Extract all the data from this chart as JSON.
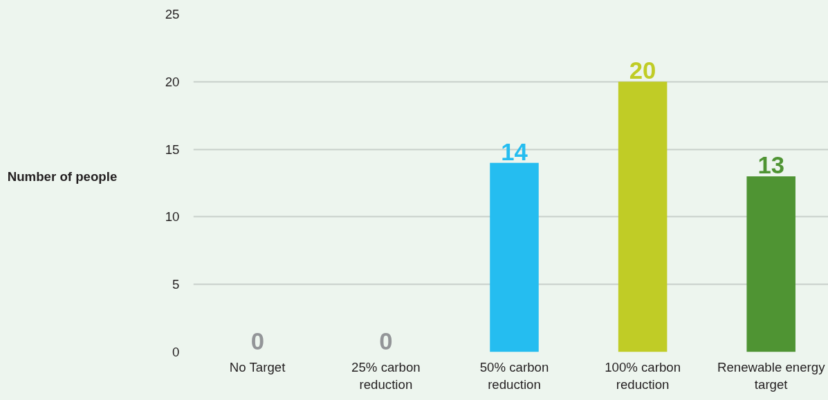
{
  "chart_data": {
    "type": "bar",
    "ylabel": "Number of people",
    "categories": [
      "No Target",
      "25% carbon reduction",
      "50% carbon reduction",
      "100% carbon reduction",
      "Renewable energy target"
    ],
    "values": [
      0,
      0,
      14,
      20,
      13
    ],
    "colors": [
      "#939598",
      "#939598",
      "#25bdf0",
      "#c0cc26",
      "#4f9433"
    ],
    "ylim": [
      0,
      25
    ],
    "yticks": [
      0,
      5,
      10,
      15,
      20,
      25
    ],
    "grid": "y",
    "data_labels": true
  }
}
